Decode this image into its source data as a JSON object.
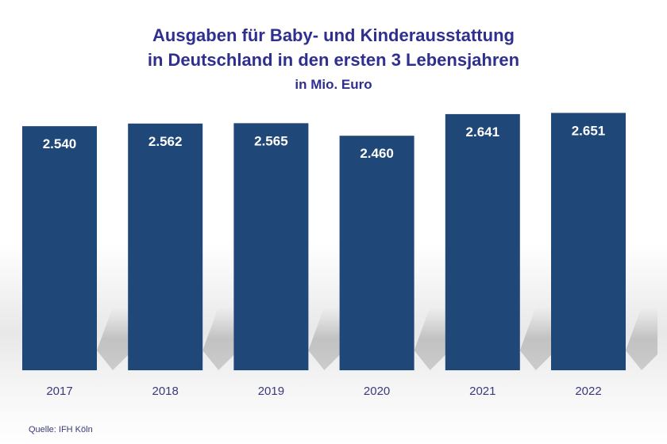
{
  "chart_data": {
    "type": "bar",
    "title": "Ausgaben für Baby- und Kinderausstattung",
    "title_line2": "in Deutschland in den ersten 3 Lebensjahren",
    "subtitle": "in Mio. Euro",
    "categories": [
      "2017",
      "2018",
      "2019",
      "2020",
      "2021",
      "2022"
    ],
    "values": [
      2540,
      2562,
      2565,
      2460,
      2641,
      2651
    ],
    "value_labels": [
      "2.540",
      "2.562",
      "2.565",
      "2.460",
      "2.641",
      "2.651"
    ],
    "xlabel": "",
    "ylabel": "",
    "ylim": [
      500,
      2700
    ],
    "grid": false,
    "bar_color": "#1f4777",
    "title_color": "#2f2f8f"
  },
  "source": "Quelle: IFH Köln"
}
